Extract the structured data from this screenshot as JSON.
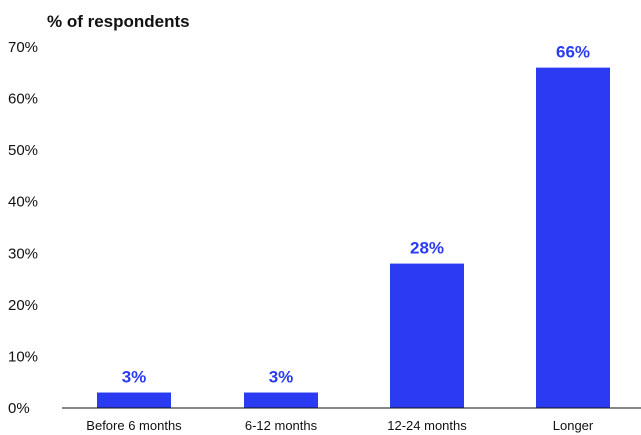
{
  "chart_data": {
    "type": "bar",
    "title": "",
    "xlabel": "",
    "ylabel": "% of respondents",
    "categories": [
      "Before 6 months",
      "6-12 months",
      "12-24 months",
      "Longer"
    ],
    "values": [
      3,
      3,
      28,
      66
    ],
    "data_labels": [
      "3%",
      "3%",
      "28%",
      "66%"
    ],
    "ylim": [
      0,
      70
    ],
    "yticks": [
      0,
      10,
      20,
      30,
      40,
      50,
      60,
      70
    ],
    "ytick_labels": [
      "0%",
      "10%",
      "20%",
      "30%",
      "40%",
      "50%",
      "60%",
      "70%"
    ],
    "grid": false,
    "legend": "none",
    "colors": {
      "bar": "#2a3bf2",
      "label": "#2a3bf2",
      "axis": "#111111"
    }
  }
}
